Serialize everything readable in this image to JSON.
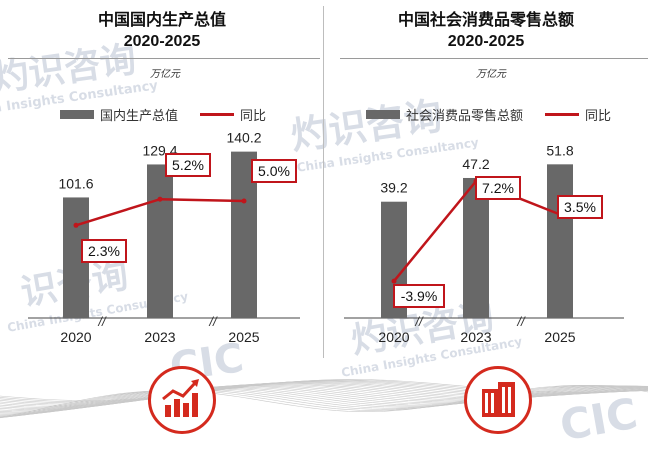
{
  "watermarks": {
    "cn_line1": "灼识咨询",
    "cn_line2": "识咨询",
    "en": "China Insights Consultancy",
    "logo": "CIC"
  },
  "colors": {
    "bar": "#686868",
    "line": "#c0151b",
    "icon": "#d42a1e"
  },
  "icons": {
    "left": "growth-chart-icon",
    "right": "buildings-icon"
  },
  "chart_data": [
    {
      "type": "bar",
      "title": "中国国内生产总值",
      "subtitle": "2020-2025",
      "unit": "万亿元",
      "categories": [
        "2020",
        "2023",
        "2025"
      ],
      "axis_break_marks": [
        "//",
        "//"
      ],
      "series": [
        {
          "name": "国内生产总值",
          "type": "bar",
          "values": [
            101.6,
            129.4,
            140.2
          ],
          "labels": [
            "101.6",
            "129.4",
            "140.2"
          ]
        },
        {
          "name": "同比",
          "type": "line",
          "values": [
            2.3,
            5.2,
            5.0
          ],
          "labels": [
            "2.3%",
            "5.2%",
            "5.0%"
          ]
        }
      ],
      "ylim": [
        0,
        150
      ],
      "y2lim": [
        -6,
        9
      ],
      "legend": "top"
    },
    {
      "type": "bar",
      "title": "中国社会消费品零售总额",
      "subtitle": "2020-2025",
      "unit": "万亿元",
      "categories": [
        "2020",
        "2023",
        "2025"
      ],
      "axis_break_marks": [
        "//",
        "//"
      ],
      "series": [
        {
          "name": "社会消费品零售总额",
          "type": "bar",
          "values": [
            39.2,
            47.2,
            51.8
          ],
          "labels": [
            "39.2",
            "47.2",
            "51.8"
          ]
        },
        {
          "name": "同比",
          "type": "line",
          "values": [
            -3.9,
            7.2,
            3.5
          ],
          "labels": [
            "-3.9%",
            "7.2%",
            "3.5%"
          ]
        }
      ],
      "ylim": [
        0,
        60
      ],
      "y2lim": [
        -6,
        9
      ],
      "legend": "top"
    }
  ]
}
